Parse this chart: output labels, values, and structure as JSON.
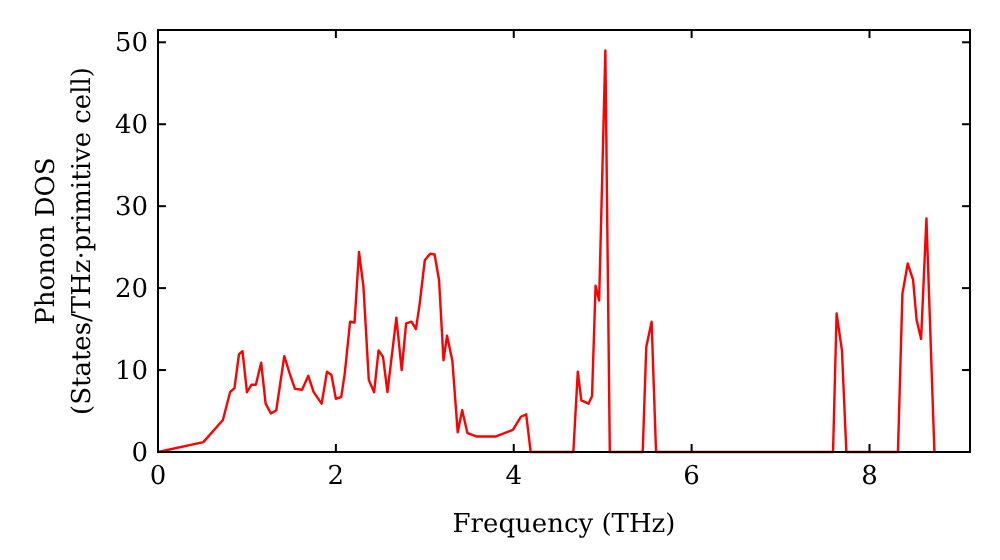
{
  "chart_data": {
    "type": "line",
    "xlabel": "Frequency (THz)",
    "ylabel": "Phonon DOS\n(States/THz·primitive cell)",
    "xlim": [
      0,
      9.13
    ],
    "ylim": [
      0,
      51.5
    ],
    "xticks": [
      0,
      2,
      4,
      6,
      8
    ],
    "yticks": [
      0,
      10,
      20,
      30,
      40,
      50
    ],
    "series": [
      {
        "color": "#ff0000",
        "x": [
          0,
          0.51,
          0.73,
          0.81,
          0.86,
          0.91,
          0.95,
          1.0,
          1.05,
          1.1,
          1.16,
          1.21,
          1.27,
          1.33,
          1.42,
          1.48,
          1.54,
          1.62,
          1.69,
          1.75,
          1.84,
          1.9,
          1.95,
          2.0,
          2.06,
          2.1,
          2.16,
          2.21,
          2.26,
          2.31,
          2.37,
          2.43,
          2.48,
          2.53,
          2.58,
          2.68,
          2.74,
          2.79,
          2.85,
          2.9,
          2.94,
          3.0,
          3.06,
          3.11,
          3.16,
          3.21,
          3.25,
          3.31,
          3.37,
          3.42,
          3.48,
          3.58,
          3.8,
          3.99,
          4.08,
          4.14,
          4.19,
          4.67,
          4.72,
          4.76,
          4.84,
          4.88,
          4.92,
          4.96,
          5.03,
          5.08,
          5.45,
          5.49,
          5.55,
          5.6,
          7.59,
          7.63,
          7.69,
          7.74,
          8.32,
          8.37,
          8.43,
          8.49,
          8.53,
          8.58,
          8.64,
          8.73
        ],
        "values": [
          0,
          1.2,
          3.9,
          7.3,
          7.8,
          11.9,
          12.3,
          7.3,
          8.2,
          8.2,
          10.9,
          5.9,
          4.7,
          5.1,
          11.7,
          9.6,
          7.7,
          7.6,
          9.3,
          7.3,
          5.9,
          9.8,
          9.4,
          6.5,
          6.7,
          9.6,
          15.9,
          15.8,
          24.4,
          20.2,
          8.8,
          7.3,
          12.4,
          11.6,
          7.3,
          16.4,
          10,
          15.7,
          15.9,
          15,
          17.9,
          23.4,
          24.2,
          24.1,
          21,
          11.2,
          14.2,
          11.1,
          2.4,
          5.1,
          2.3,
          1.9,
          1.9,
          2.7,
          4.3,
          4.6,
          0,
          0,
          9.8,
          6.3,
          5.9,
          6.8,
          20.3,
          18.5,
          49,
          0,
          0,
          12.8,
          15.9,
          0,
          0,
          16.9,
          12.4,
          0,
          0,
          19.3,
          23,
          21,
          16.1,
          13.8,
          28.5,
          0
        ]
      }
    ]
  }
}
